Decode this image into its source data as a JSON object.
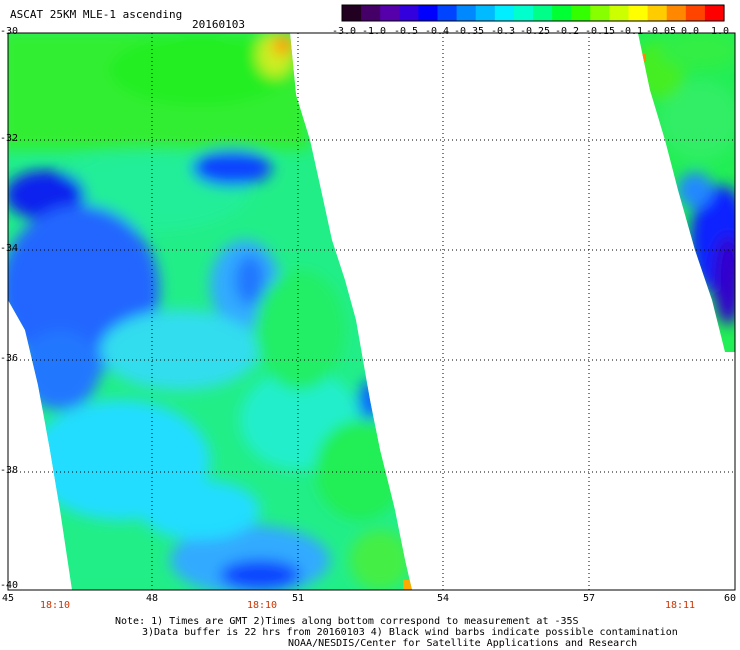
{
  "header": {
    "title": "ASCAT 25KM MLE-1 ascending",
    "date": "20160103"
  },
  "colorbar": {
    "labels": [
      "-3.0",
      "-1.0",
      "-0.5",
      "-0.4",
      "-0.35",
      "-0.3",
      "-0.25",
      "-0.2",
      "-0.15",
      "-0.1",
      "-0.05",
      "0.0",
      "1.0"
    ],
    "colors": [
      "#220022",
      "#440066",
      "#5500aa",
      "#3300dd",
      "#0000ff",
      "#0044ff",
      "#0088ff",
      "#00bbff",
      "#00eeff",
      "#00ffcc",
      "#00ff88",
      "#00ff33",
      "#33ff00",
      "#88ff00",
      "#ccff00",
      "#ffff00",
      "#ffcc00",
      "#ff8800",
      "#ff4400",
      "#ff0000"
    ]
  },
  "axes": {
    "lat_labels": [
      "-30",
      "-32",
      "-34",
      "-36",
      "-38",
      "-40"
    ],
    "lon_labels": [
      "45",
      "48",
      "51",
      "54",
      "57",
      "60"
    ]
  },
  "times": [
    "18:10",
    "18:10",
    "18:11"
  ],
  "notes": {
    "line1": "Note: 1) Times are GMT 2)Times along bottom correspond to measurement at -35S",
    "line2": "3)Data buffer is 22 hrs from 20160103 4) Black wind barbs indicate possible contamination",
    "line3": "NOAA/NESDIS/Center for Satellite Applications and Research"
  }
}
